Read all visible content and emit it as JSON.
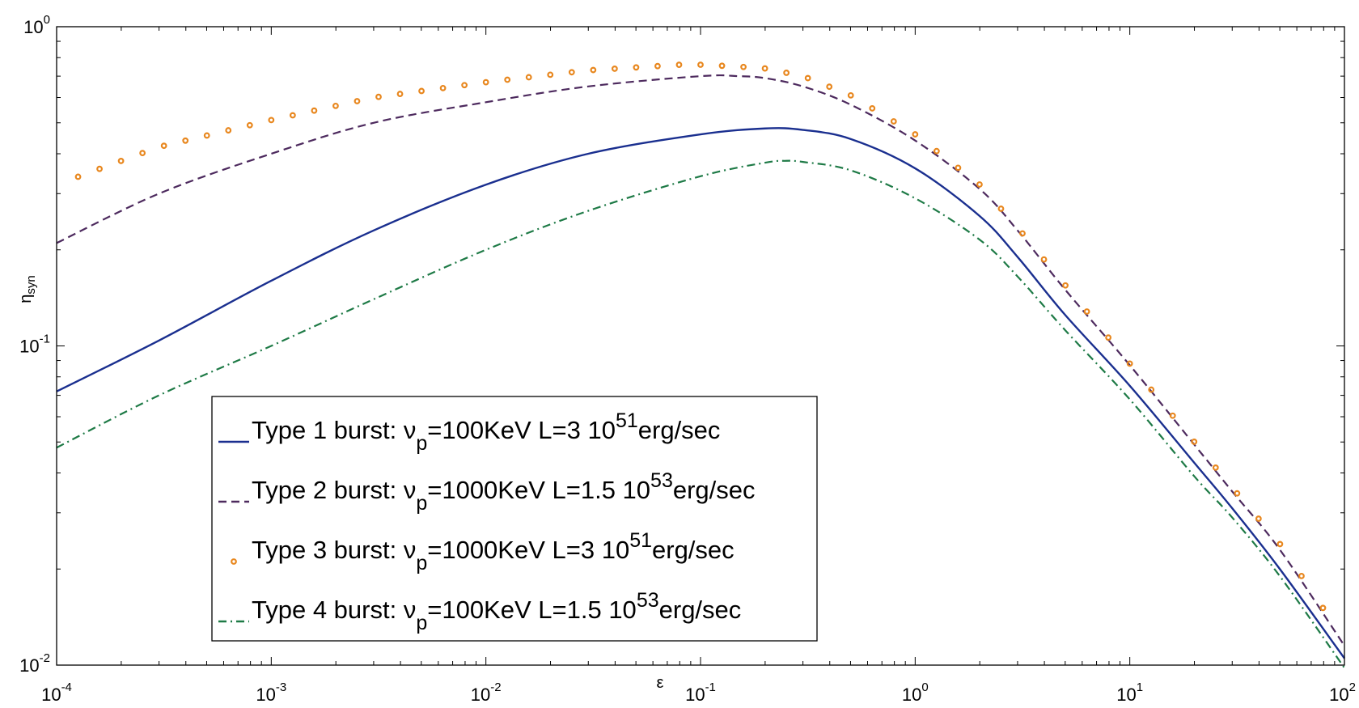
{
  "chart_data": {
    "type": "line",
    "xscale": "log",
    "yscale": "log",
    "xlim": [
      0.0001,
      100
    ],
    "ylim": [
      0.01,
      1
    ],
    "xlabel": "ε",
    "ylabel": {
      "base": "η",
      "sub": "syn"
    },
    "x_ticks": [
      {
        "value": 0.0001,
        "base": "10",
        "exp": "-4"
      },
      {
        "value": 0.001,
        "base": "10",
        "exp": "-3"
      },
      {
        "value": 0.01,
        "base": "10",
        "exp": "-2"
      },
      {
        "value": 0.1,
        "base": "10",
        "exp": "-1"
      },
      {
        "value": 1,
        "base": "10",
        "exp": "0"
      },
      {
        "value": 10,
        "base": "10",
        "exp": "1"
      },
      {
        "value": 100,
        "base": "10",
        "exp": "2"
      }
    ],
    "y_ticks": [
      {
        "value": 0.01,
        "base": "10",
        "exp": "-2"
      },
      {
        "value": 0.1,
        "base": "10",
        "exp": "-1"
      },
      {
        "value": 1,
        "base": "10",
        "exp": "0"
      }
    ],
    "series": [
      {
        "name": "Type 1 burst",
        "legend": {
          "pre": "Type 1 burst: ν",
          "sub": "p",
          "mid": "=100KeV L=3 10",
          "sup": "51",
          "post": "erg/sec"
        },
        "color": "#1a2f8f",
        "style": "solid",
        "x": [
          0.0001,
          0.0003,
          0.001,
          0.003,
          0.01,
          0.03,
          0.1,
          0.2,
          0.3,
          0.5,
          1,
          2,
          3,
          5,
          10,
          20,
          30,
          50,
          100
        ],
        "y": [
          0.072,
          0.104,
          0.16,
          0.23,
          0.32,
          0.4,
          0.46,
          0.48,
          0.475,
          0.445,
          0.36,
          0.255,
          0.19,
          0.125,
          0.075,
          0.043,
          0.031,
          0.02,
          0.0105
        ]
      },
      {
        "name": "Type 2 burst",
        "legend": {
          "pre": "Type 2 burst: ν",
          "sub": "p",
          "mid": "=1000KeV L=1.5 10",
          "sup": "53",
          "post": "erg/sec"
        },
        "color": "#4d2a5e",
        "style": "dashed",
        "x": [
          0.0001,
          0.0003,
          0.001,
          0.003,
          0.01,
          0.03,
          0.1,
          0.15,
          0.2,
          0.3,
          0.5,
          1,
          2,
          3,
          5,
          10,
          20,
          30,
          50,
          100
        ],
        "y": [
          0.21,
          0.3,
          0.4,
          0.5,
          0.58,
          0.65,
          0.7,
          0.7,
          0.69,
          0.65,
          0.57,
          0.44,
          0.31,
          0.23,
          0.15,
          0.087,
          0.049,
          0.035,
          0.023,
          0.0115
        ]
      },
      {
        "name": "Type 3 burst",
        "legend": {
          "pre": "Type 3 burst: ν",
          "sub": "p",
          "mid": "=1000KeV L=3 10",
          "sup": "51",
          "post": "erg/sec"
        },
        "color": "#e8871e",
        "style": "circles",
        "x": [
          0.0001,
          0.0003,
          0.001,
          0.003,
          0.01,
          0.03,
          0.08,
          0.1,
          0.15,
          0.2,
          0.3,
          0.5,
          1,
          2,
          3,
          5,
          10,
          20,
          30,
          50,
          100
        ],
        "y": [
          0.32,
          0.42,
          0.51,
          0.6,
          0.67,
          0.73,
          0.76,
          0.76,
          0.75,
          0.74,
          0.7,
          0.61,
          0.46,
          0.32,
          0.235,
          0.155,
          0.088,
          0.05,
          0.036,
          0.024,
          0.012
        ]
      },
      {
        "name": "Type 4 burst",
        "legend": {
          "pre": "Type 4 burst: ν",
          "sub": "p",
          "mid": "=100KeV L=1.5 10",
          "sup": "53",
          "post": "erg/sec"
        },
        "color": "#1e7a46",
        "style": "dashdot",
        "x": [
          0.0001,
          0.0003,
          0.001,
          0.003,
          0.01,
          0.03,
          0.1,
          0.2,
          0.25,
          0.3,
          0.5,
          1,
          2,
          3,
          5,
          10,
          20,
          30,
          50,
          100
        ],
        "y": [
          0.048,
          0.07,
          0.1,
          0.14,
          0.2,
          0.265,
          0.34,
          0.375,
          0.38,
          0.377,
          0.355,
          0.29,
          0.215,
          0.165,
          0.112,
          0.068,
          0.039,
          0.029,
          0.019,
          0.0098
        ]
      }
    ]
  }
}
